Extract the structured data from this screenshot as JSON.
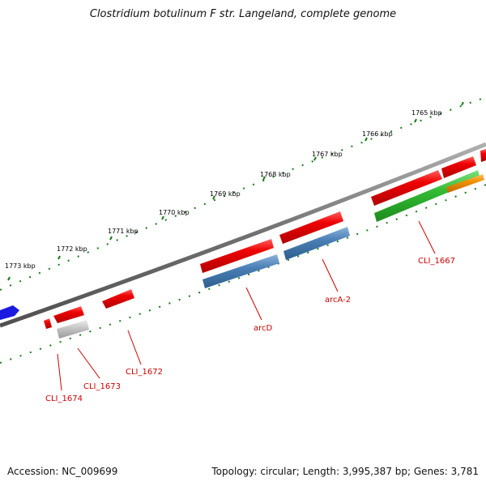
{
  "title": "Clostridium botulinum F str. Langeland, complete genome",
  "accession": "Accession: NC_009699",
  "topology": "Topology: circular; Length: 3,995,387 bp; Genes: 3,781",
  "kbp_ticks": [
    "1765 kbp",
    "1766 kbp",
    "1767 kbp",
    "1768 kbp",
    "1769 kbp",
    "1770 kbp",
    "1771 kbp",
    "1772 kbp",
    "1773 kbp"
  ],
  "gene_labels": [
    "CLI_1667",
    "arcA-2",
    "arcD",
    "CLI_1672",
    "CLI_1673",
    "CLI_1674"
  ],
  "colors": {
    "backbone": "#808080",
    "forward_gene": "#ee0000",
    "blue_feature": "#4a7fb5",
    "green_feature": "#33bb33",
    "orange_feature": "#f09000",
    "gray_feature": "#c8c8c8",
    "tick": "#1a7a1a",
    "label": "#cc0000"
  }
}
